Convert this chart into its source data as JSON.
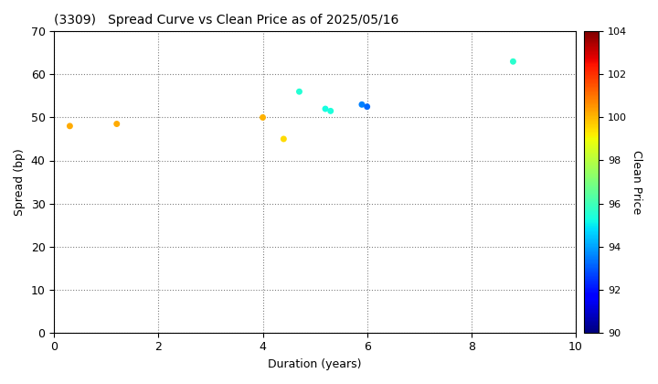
{
  "title": "(3309)   Spread Curve vs Clean Price as of 2025/05/16",
  "xlabel": "Duration (years)",
  "ylabel": "Spread (bp)",
  "colorbar_label": "Clean Price",
  "xlim": [
    0,
    10
  ],
  "ylim": [
    0,
    70
  ],
  "xticks": [
    0,
    2,
    4,
    6,
    8,
    10
  ],
  "yticks": [
    0,
    10,
    20,
    30,
    40,
    50,
    60,
    70
  ],
  "colorbar_min": 90,
  "colorbar_max": 104,
  "points": [
    {
      "duration": 0.3,
      "spread": 48,
      "price": 100.2
    },
    {
      "duration": 1.2,
      "spread": 48.5,
      "price": 100.2
    },
    {
      "duration": 4.0,
      "spread": 50,
      "price": 100.1
    },
    {
      "duration": 4.4,
      "spread": 45,
      "price": 99.5
    },
    {
      "duration": 4.7,
      "spread": 56,
      "price": 95.5
    },
    {
      "duration": 5.2,
      "spread": 52,
      "price": 95.3
    },
    {
      "duration": 5.3,
      "spread": 51.5,
      "price": 95.4
    },
    {
      "duration": 5.9,
      "spread": 53,
      "price": 93.5
    },
    {
      "duration": 6.0,
      "spread": 52.5,
      "price": 93.2
    },
    {
      "duration": 8.8,
      "spread": 63,
      "price": 95.6
    }
  ],
  "marker_size": 25,
  "colormap": "jet",
  "grid_color": "gray",
  "grid_linestyle": ":",
  "grid_linewidth": 0.8,
  "bg_color": "white",
  "title_fontsize": 10,
  "axis_fontsize": 9,
  "colorbar_tick_fontsize": 8,
  "colorbar_ticks": [
    90,
    92,
    94,
    96,
    98,
    100,
    102,
    104
  ],
  "colorbar_labelpad": 12,
  "colorbar_fontsize": 9
}
